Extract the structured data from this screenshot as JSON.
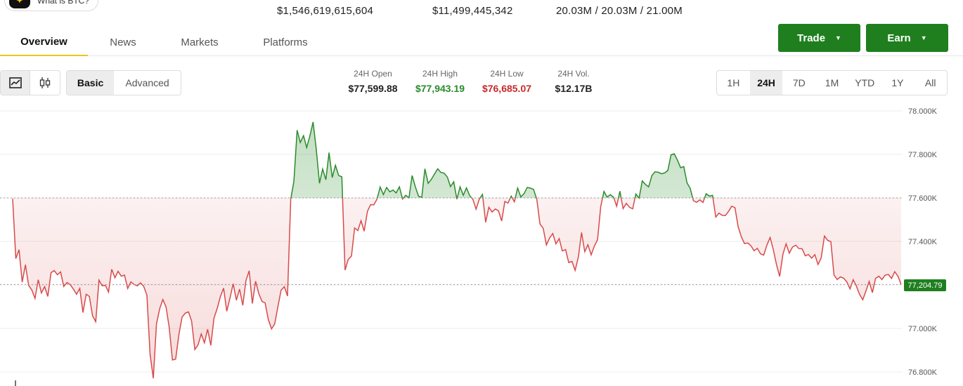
{
  "header": {
    "chip_label": "What is BTC?",
    "market_cap": "$1,546,619,615,604",
    "volume": "$11,499,445,342",
    "supply": "20.03M / 20.03M / 21.00M"
  },
  "tabs": [
    "Overview",
    "News",
    "Markets",
    "Platforms"
  ],
  "actions": {
    "trade": "Trade",
    "earn": "Earn"
  },
  "chart_controls": {
    "modes": [
      "Basic",
      "Advanced"
    ],
    "selected_mode": "Basic",
    "ranges": [
      "1H",
      "24H",
      "7D",
      "1M",
      "YTD",
      "1Y",
      "All"
    ],
    "selected_range": "24H"
  },
  "stats": {
    "open_label": "24H Open",
    "open": "$77,599.88",
    "high_label": "24H High",
    "high": "$77,943.19",
    "low_label": "24H Low",
    "low": "$76,685.07",
    "vol_label": "24H Vol.",
    "vol": "$12.17B"
  },
  "colors": {
    "up": "#2a8c2a",
    "down": "#d84a4a",
    "accent": "#1f7f1f",
    "tab_underline": "#f0c419"
  },
  "chart_data": {
    "type": "line",
    "ylim": [
      76800,
      78000
    ],
    "yticks": [
      "78.000K",
      "77.800K",
      "77.600K",
      "77.400K",
      "77.200K",
      "77.000K",
      "76.800K"
    ],
    "baseline": 77599.88,
    "current_price_label": "77,204.79",
    "values": [
      77596,
      77321,
      77362,
      77213,
      77293,
      77198,
      77176,
      77138,
      77224,
      77163,
      77192,
      77147,
      77256,
      77266,
      77247,
      77260,
      77193,
      77211,
      77202,
      77181,
      77157,
      77184,
      77073,
      77157,
      77147,
      77058,
      77031,
      77222,
      77196,
      77198,
      77167,
      77272,
      77233,
      77263,
      77240,
      77245,
      77184,
      77214,
      77202,
      77196,
      77209,
      77194,
      77153,
      76881,
      76771,
      77021,
      77091,
      77133,
      77099,
      77003,
      76855,
      76859,
      76970,
      77052,
      77070,
      77076,
      77034,
      76903,
      76924,
      76975,
      76934,
      76996,
      76922,
      77047,
      77092,
      77146,
      77185,
      77079,
      77140,
      77206,
      77130,
      77181,
      77106,
      77220,
      77265,
      77115,
      77217,
      77161,
      77125,
      77117,
      77041,
      76998,
      77021,
      77101,
      77176,
      77192,
      77149,
      77594,
      77676,
      77911,
      77855,
      77886,
      77832,
      77884,
      77949,
      77825,
      77667,
      77733,
      77684,
      77808,
      77694,
      77750,
      77703,
      77697,
      77268,
      77317,
      77333,
      77462,
      77450,
      77495,
      77447,
      77538,
      77569,
      77568,
      77594,
      77650,
      77615,
      77648,
      77628,
      77636,
      77623,
      77651,
      77595,
      77612,
      77600,
      77703,
      77651,
      77608,
      77603,
      77734,
      77667,
      77685,
      77710,
      77734,
      77717,
      77714,
      77696,
      77652,
      77674,
      77594,
      77651,
      77612,
      77646,
      77610,
      77594,
      77548,
      77594,
      77616,
      77488,
      77557,
      77535,
      77549,
      77541,
      77494,
      77584,
      77576,
      77608,
      77582,
      77645,
      77605,
      77619,
      77648,
      77645,
      77639,
      77593,
      77480,
      77460,
      77384,
      77416,
      77436,
      77389,
      77413,
      77356,
      77363,
      77303,
      77308,
      77267,
      77328,
      77441,
      77353,
      77385,
      77338,
      77378,
      77408,
      77560,
      77630,
      77604,
      77615,
      77604,
      77562,
      77631,
      77551,
      77575,
      77557,
      77550,
      77618,
      77599,
      77678,
      77662,
      77651,
      77703,
      77720,
      77718,
      77711,
      77715,
      77726,
      77798,
      77803,
      77774,
      77739,
      77744,
      77669,
      77644,
      77587,
      77580,
      77591,
      77579,
      77619,
      77608,
      77612,
      77512,
      77530,
      77520,
      77519,
      77538,
      77562,
      77555,
      77468,
      77421,
      77390,
      77393,
      77380,
      77357,
      77368,
      77343,
      77337,
      77383,
      77418,
      77363,
      77293,
      77239,
      77341,
      77389,
      77346,
      77374,
      77383,
      77367,
      77366,
      77334,
      77340,
      77323,
      77339,
      77294,
      77325,
      77425,
      77405,
      77399,
      77245,
      77225,
      77237,
      77231,
      77214,
      77182,
      77224,
      77195,
      77156,
      77132,
      77173,
      77216,
      77165,
      77230,
      77240,
      77225,
      77245,
      77248,
      77230,
      77261,
      77240,
      77202
    ]
  }
}
